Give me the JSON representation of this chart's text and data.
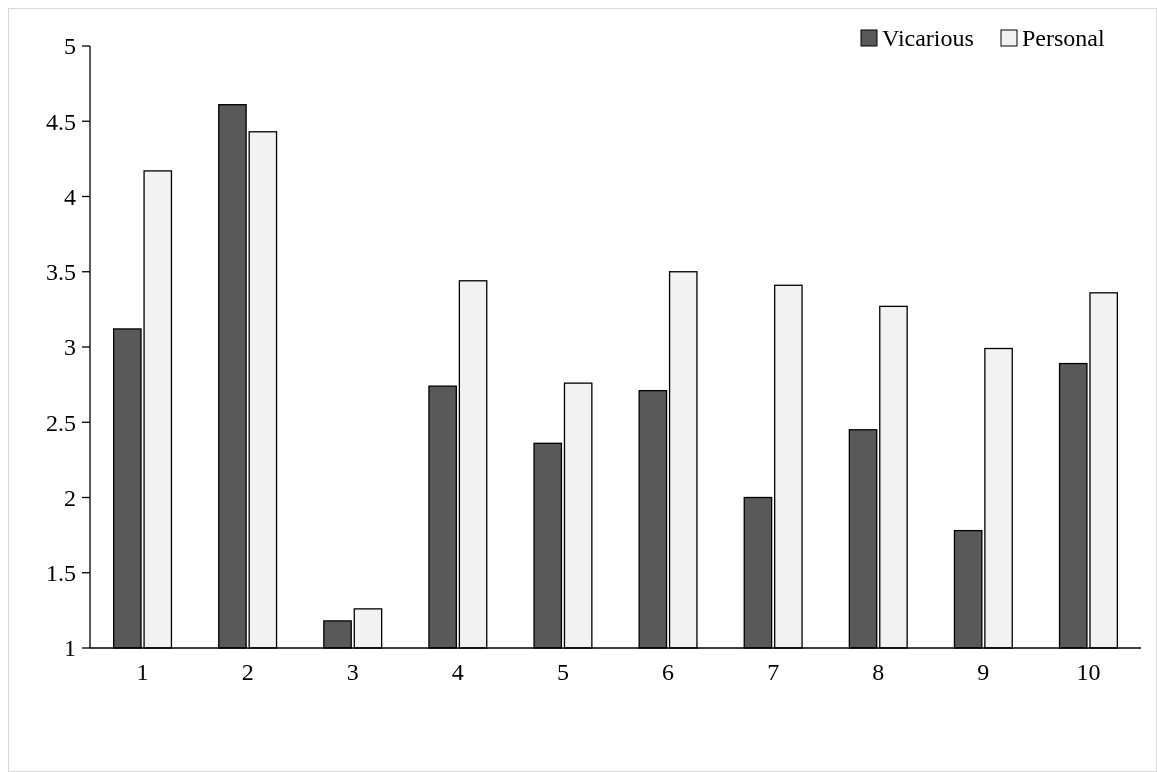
{
  "chart_data": {
    "type": "bar",
    "categories": [
      "1",
      "2",
      "3",
      "4",
      "5",
      "6",
      "7",
      "8",
      "9",
      "10"
    ],
    "series": [
      {
        "name": "Vicarious",
        "color": "#595959",
        "values": [
          3.12,
          4.61,
          1.18,
          2.74,
          2.36,
          2.71,
          2.0,
          2.45,
          1.78,
          2.89
        ]
      },
      {
        "name": "Personal",
        "color": "#f2f2f2",
        "values": [
          4.17,
          4.43,
          1.26,
          3.44,
          2.76,
          3.5,
          3.41,
          3.27,
          2.99,
          3.36
        ]
      }
    ],
    "ylim": [
      1,
      5
    ],
    "yticks": [
      1,
      1.5,
      2,
      2.5,
      3,
      3.5,
      4,
      4.5,
      5
    ],
    "grid": false,
    "legend": "top right"
  }
}
